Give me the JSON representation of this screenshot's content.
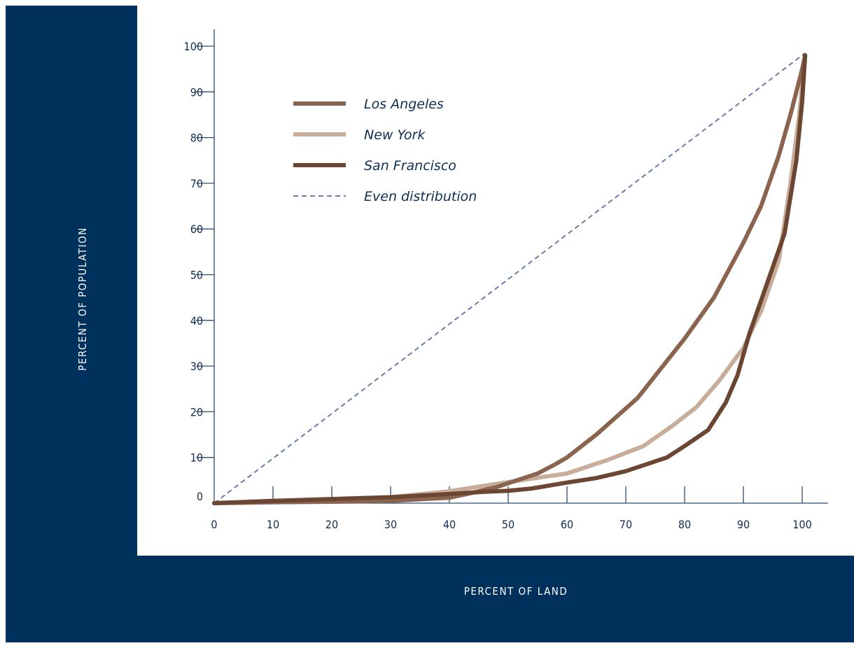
{
  "colors": {
    "frame": "#00305c",
    "panel": "#ffffff",
    "axis": "#2c4a72",
    "text": "#0f2e56"
  },
  "chart_data": {
    "type": "line",
    "xlabel": "PERCENT OF LAND",
    "ylabel": "PERCENT OF POPULATION",
    "xlim": [
      0,
      104
    ],
    "ylim": [
      0,
      104
    ],
    "x_ticks": [
      0,
      10,
      20,
      30,
      40,
      50,
      60,
      70,
      80,
      90,
      100
    ],
    "y_ticks": [
      0,
      10,
      20,
      30,
      40,
      50,
      60,
      70,
      80,
      90,
      100
    ],
    "grid": false,
    "legend_position": "top-left",
    "series": [
      {
        "name": "Los Angeles",
        "color": "#8b6450",
        "dash": false,
        "points": [
          [
            0,
            0
          ],
          [
            10,
            0.2
          ],
          [
            20,
            0.3
          ],
          [
            30,
            0.5
          ],
          [
            40,
            1.2
          ],
          [
            43,
            2
          ],
          [
            48,
            3.5
          ],
          [
            55,
            6.5
          ],
          [
            58,
            8.5
          ],
          [
            60,
            10
          ],
          [
            65,
            15
          ],
          [
            72,
            23
          ],
          [
            80,
            36
          ],
          [
            85,
            45
          ],
          [
            90,
            57
          ],
          [
            93,
            65
          ],
          [
            96,
            76
          ],
          [
            98,
            85
          ],
          [
            100,
            95
          ],
          [
            100.5,
            98
          ]
        ]
      },
      {
        "name": "New York",
        "color": "#c8ad9b",
        "dash": false,
        "points": [
          [
            0,
            0
          ],
          [
            10,
            0.4
          ],
          [
            20,
            0.7
          ],
          [
            30,
            1.3
          ],
          [
            40,
            2.6
          ],
          [
            47,
            4
          ],
          [
            52,
            5
          ],
          [
            60,
            6.5
          ],
          [
            67,
            9.5
          ],
          [
            73,
            12.5
          ],
          [
            78,
            17
          ],
          [
            82,
            21
          ],
          [
            86,
            27
          ],
          [
            90,
            34
          ],
          [
            93,
            42
          ],
          [
            96,
            53
          ],
          [
            98,
            70
          ],
          [
            99.5,
            85
          ],
          [
            100.5,
            98
          ]
        ]
      },
      {
        "name": "San Francisco",
        "color": "#6b4632",
        "dash": false,
        "points": [
          [
            0,
            0
          ],
          [
            10,
            0.5
          ],
          [
            20,
            0.9
          ],
          [
            30,
            1.3
          ],
          [
            40,
            2
          ],
          [
            46,
            2.5
          ],
          [
            50,
            2.7
          ],
          [
            54,
            3.2
          ],
          [
            60,
            4.5
          ],
          [
            65,
            5.5
          ],
          [
            70,
            7
          ],
          [
            77,
            10
          ],
          [
            80,
            12.5
          ],
          [
            84,
            16
          ],
          [
            87,
            22
          ],
          [
            89,
            28
          ],
          [
            91,
            37
          ],
          [
            94,
            48
          ],
          [
            97,
            59
          ],
          [
            99,
            75
          ],
          [
            100,
            88
          ],
          [
            100.5,
            98
          ]
        ]
      },
      {
        "name": "Even distribution",
        "color": "#6b7ca8",
        "dash": true,
        "points": [
          [
            0,
            0
          ],
          [
            100.5,
            98.5
          ]
        ]
      }
    ]
  }
}
